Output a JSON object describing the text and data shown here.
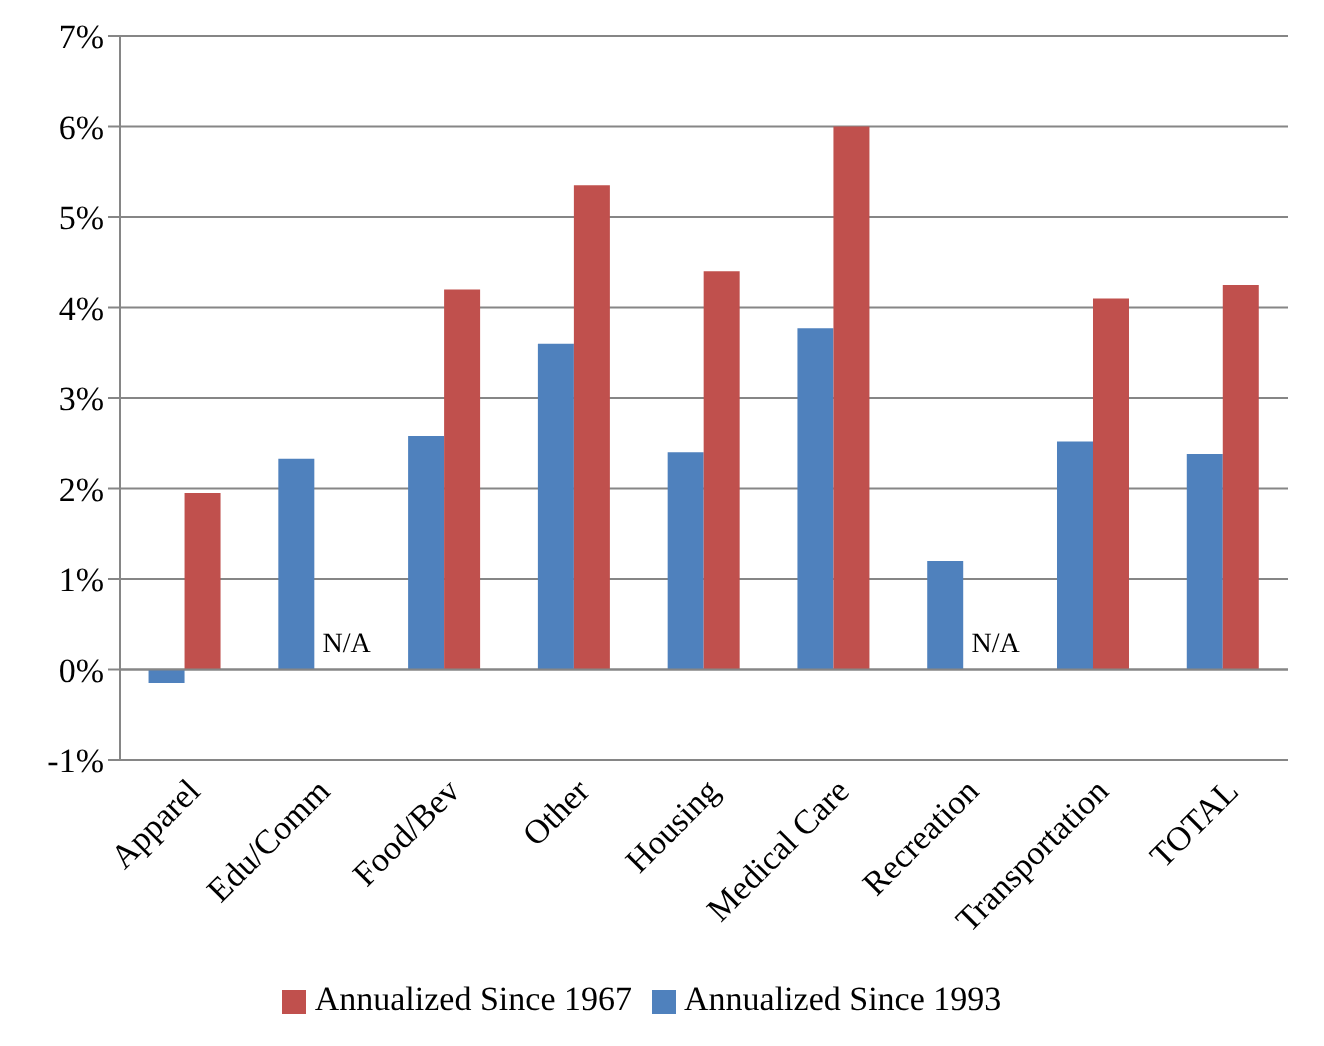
{
  "chart_data": {
    "type": "bar",
    "categories": [
      "Apparel",
      "Edu/Comm",
      "Food/Bev",
      "Other",
      "Housing",
      "Medical Care",
      "Recreation",
      "Transportation",
      "TOTAL"
    ],
    "series": [
      {
        "name": "Annualized Since 1993",
        "color": "#4f81bd",
        "values": [
          -0.15,
          2.33,
          2.58,
          3.6,
          2.4,
          3.77,
          1.2,
          2.52,
          2.38
        ]
      },
      {
        "name": "Annualized Since 1967",
        "color": "#c0504d",
        "values": [
          1.95,
          null,
          4.2,
          5.35,
          4.4,
          6.0,
          null,
          4.1,
          4.25
        ]
      }
    ],
    "ylim": [
      -1,
      7
    ],
    "yticks": [
      {
        "value": -1,
        "label": "-1%"
      },
      {
        "value": 0,
        "label": "0%"
      },
      {
        "value": 1,
        "label": "1%"
      },
      {
        "value": 2,
        "label": "2%"
      },
      {
        "value": 3,
        "label": "3%"
      },
      {
        "value": 4,
        "label": "4%"
      },
      {
        "value": 5,
        "label": "5%"
      },
      {
        "value": 6,
        "label": "6%"
      },
      {
        "value": 7,
        "label": "7%"
      }
    ],
    "grid": "y",
    "legend": "bottom",
    "annotations": [
      {
        "text": "N/A",
        "x": "Edu/Comm",
        "y": 0
      },
      {
        "text": "N/A",
        "x": "Recreation",
        "y": 0
      }
    ]
  }
}
